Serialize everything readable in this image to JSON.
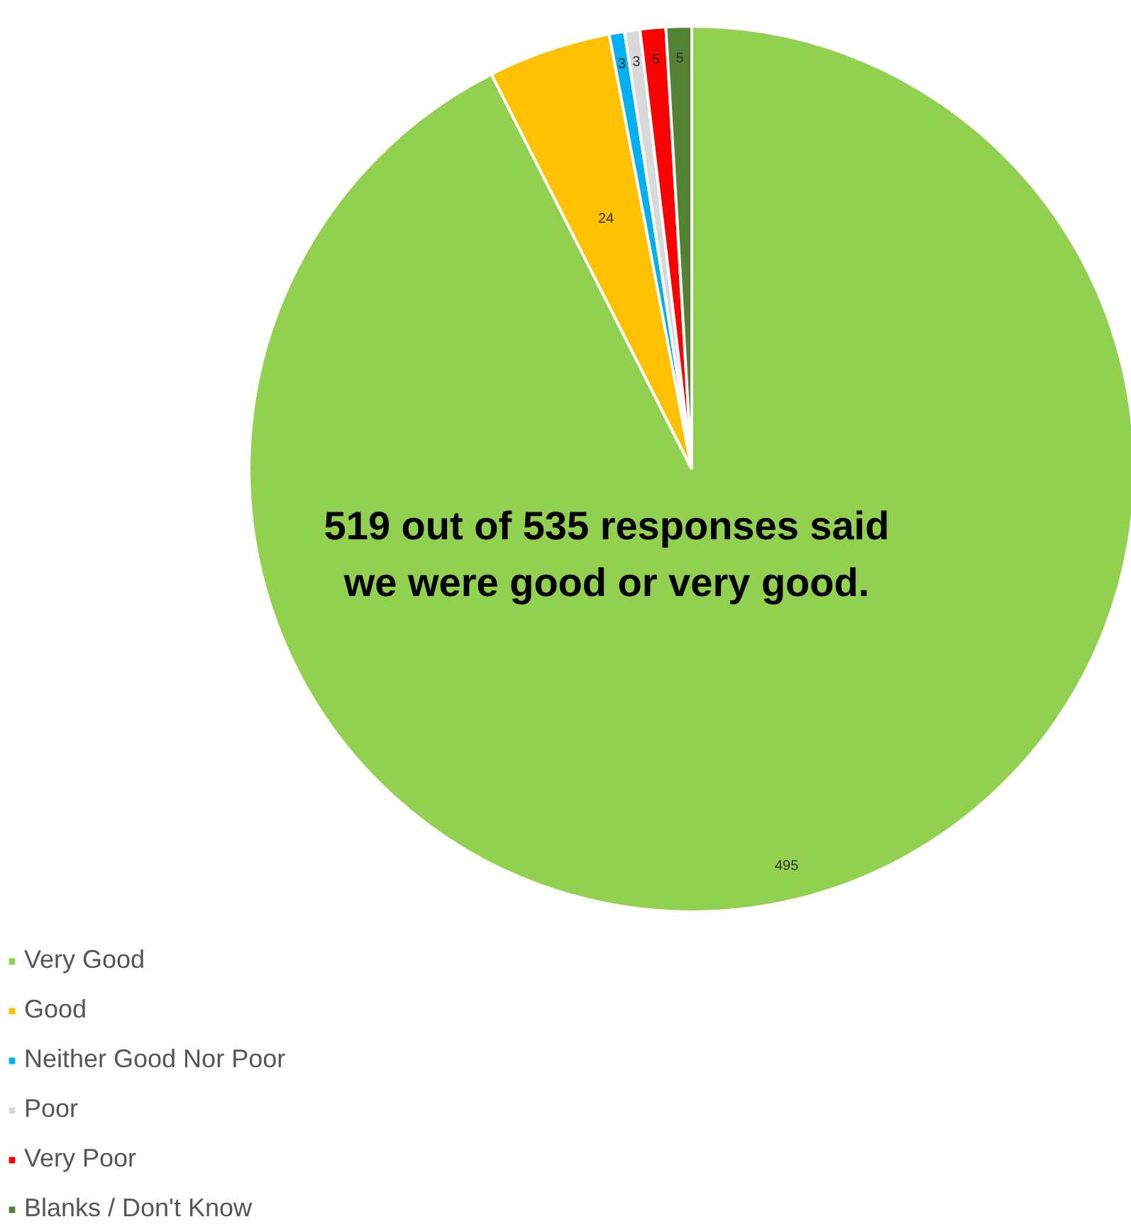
{
  "chart_data": {
    "type": "pie",
    "categories": [
      "Very Good",
      "Good",
      "Neither Good Nor Poor",
      "Poor",
      "Very Poor",
      "Blanks / Don't Know"
    ],
    "values": [
      495,
      24,
      3,
      3,
      5,
      5
    ],
    "colors": [
      "#92d050",
      "#ffc000",
      "#00b0f0",
      "#d9d9d9",
      "#ff0000",
      "#548235"
    ],
    "data_labels": true,
    "legend": "bottom left",
    "annotations": [
      "519 out of 535 responses said we were good or very good."
    ]
  }
}
